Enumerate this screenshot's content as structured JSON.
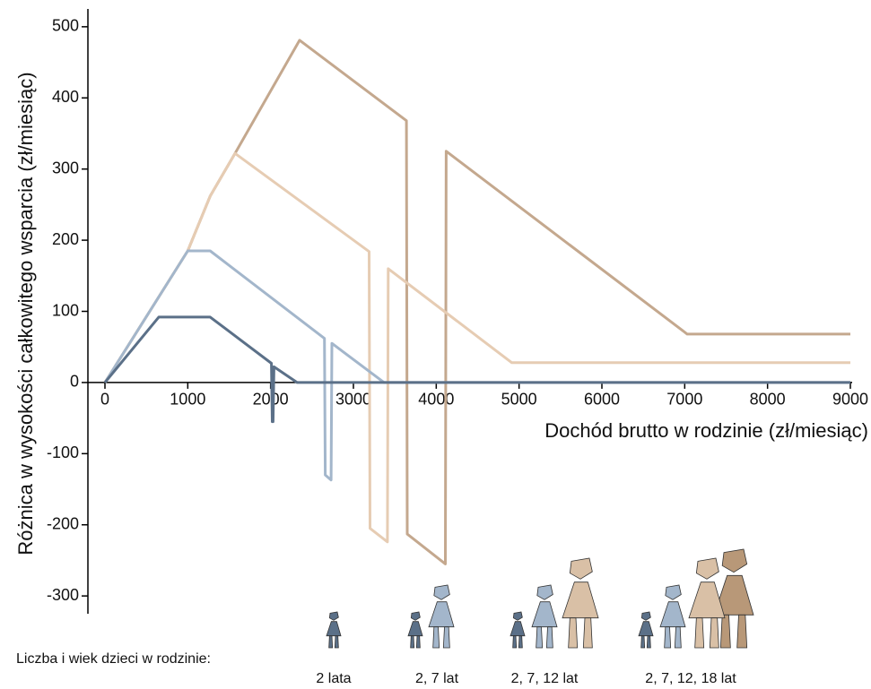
{
  "chart_data": {
    "type": "line",
    "x_label": "Dochód brutto w rodzinie (zł/miesiąc)",
    "y_label": "Różnica w wysokości całkowitego wsparcia (zł/miesiąc)",
    "legend_title": "Liczba i wiek dzieci w rodzinie:",
    "xlim": [
      0,
      9000
    ],
    "ylim": [
      -325,
      525
    ],
    "xticks": [
      0,
      1000,
      2000,
      3000,
      4000,
      5000,
      6000,
      7000,
      8000,
      9000
    ],
    "yticks": [
      -300,
      -200,
      -100,
      0,
      100,
      200,
      300,
      400,
      500
    ],
    "series": [
      {
        "name": "2, 7, 12, 18 lat",
        "color": "#c4a88e",
        "x": [
          0,
          1000,
          1270,
          1570,
          2350,
          3640,
          3650,
          4110,
          4120,
          7030,
          9000
        ],
        "values": [
          0,
          185,
          262,
          322,
          481,
          368,
          -213,
          -255,
          325,
          68,
          68
        ]
      },
      {
        "name": "2, 7, 12 lat",
        "color": "#e6ccb3",
        "x": [
          0,
          1000,
          1270,
          1570,
          3190,
          3200,
          3410,
          3420,
          4910,
          9000
        ],
        "values": [
          0,
          185,
          262,
          322,
          184,
          -205,
          -224,
          160,
          28,
          28
        ]
      },
      {
        "name": "2, 7 lat",
        "color": "#a3b6cb",
        "x": [
          0,
          1000,
          1270,
          2650,
          2660,
          2730,
          2740,
          3370,
          9000
        ],
        "values": [
          0,
          185,
          185,
          62,
          -130,
          -137,
          55,
          0,
          0
        ]
      },
      {
        "name": "2 lata",
        "color": "#5b7088",
        "x": [
          0,
          650,
          1270,
          2010,
          2020,
          2030,
          2040,
          2320,
          9000
        ],
        "values": [
          0,
          92,
          92,
          27,
          -55,
          -55,
          22,
          0,
          0
        ]
      }
    ]
  }
}
